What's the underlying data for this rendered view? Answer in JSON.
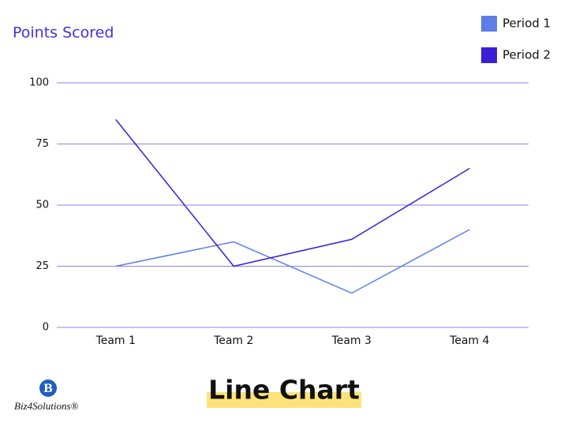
{
  "chart_data": {
    "type": "line",
    "title": "Line Chart",
    "y_label": "Points Scored",
    "categories": [
      "Team 1",
      "Team 2",
      "Team 3",
      "Team 4"
    ],
    "series": [
      {
        "name": "Period 1",
        "color": "#5b7fe6",
        "values": [
          25,
          35,
          14,
          40
        ]
      },
      {
        "name": "Period 2",
        "color": "#3b1fd6",
        "values": [
          85,
          25,
          36,
          65
        ]
      }
    ],
    "ylim": [
      0,
      100
    ],
    "yticks": [
      0,
      25,
      50,
      75,
      100
    ],
    "grid": true,
    "legend": "top-right"
  },
  "logo": "Biz4Solutions®"
}
